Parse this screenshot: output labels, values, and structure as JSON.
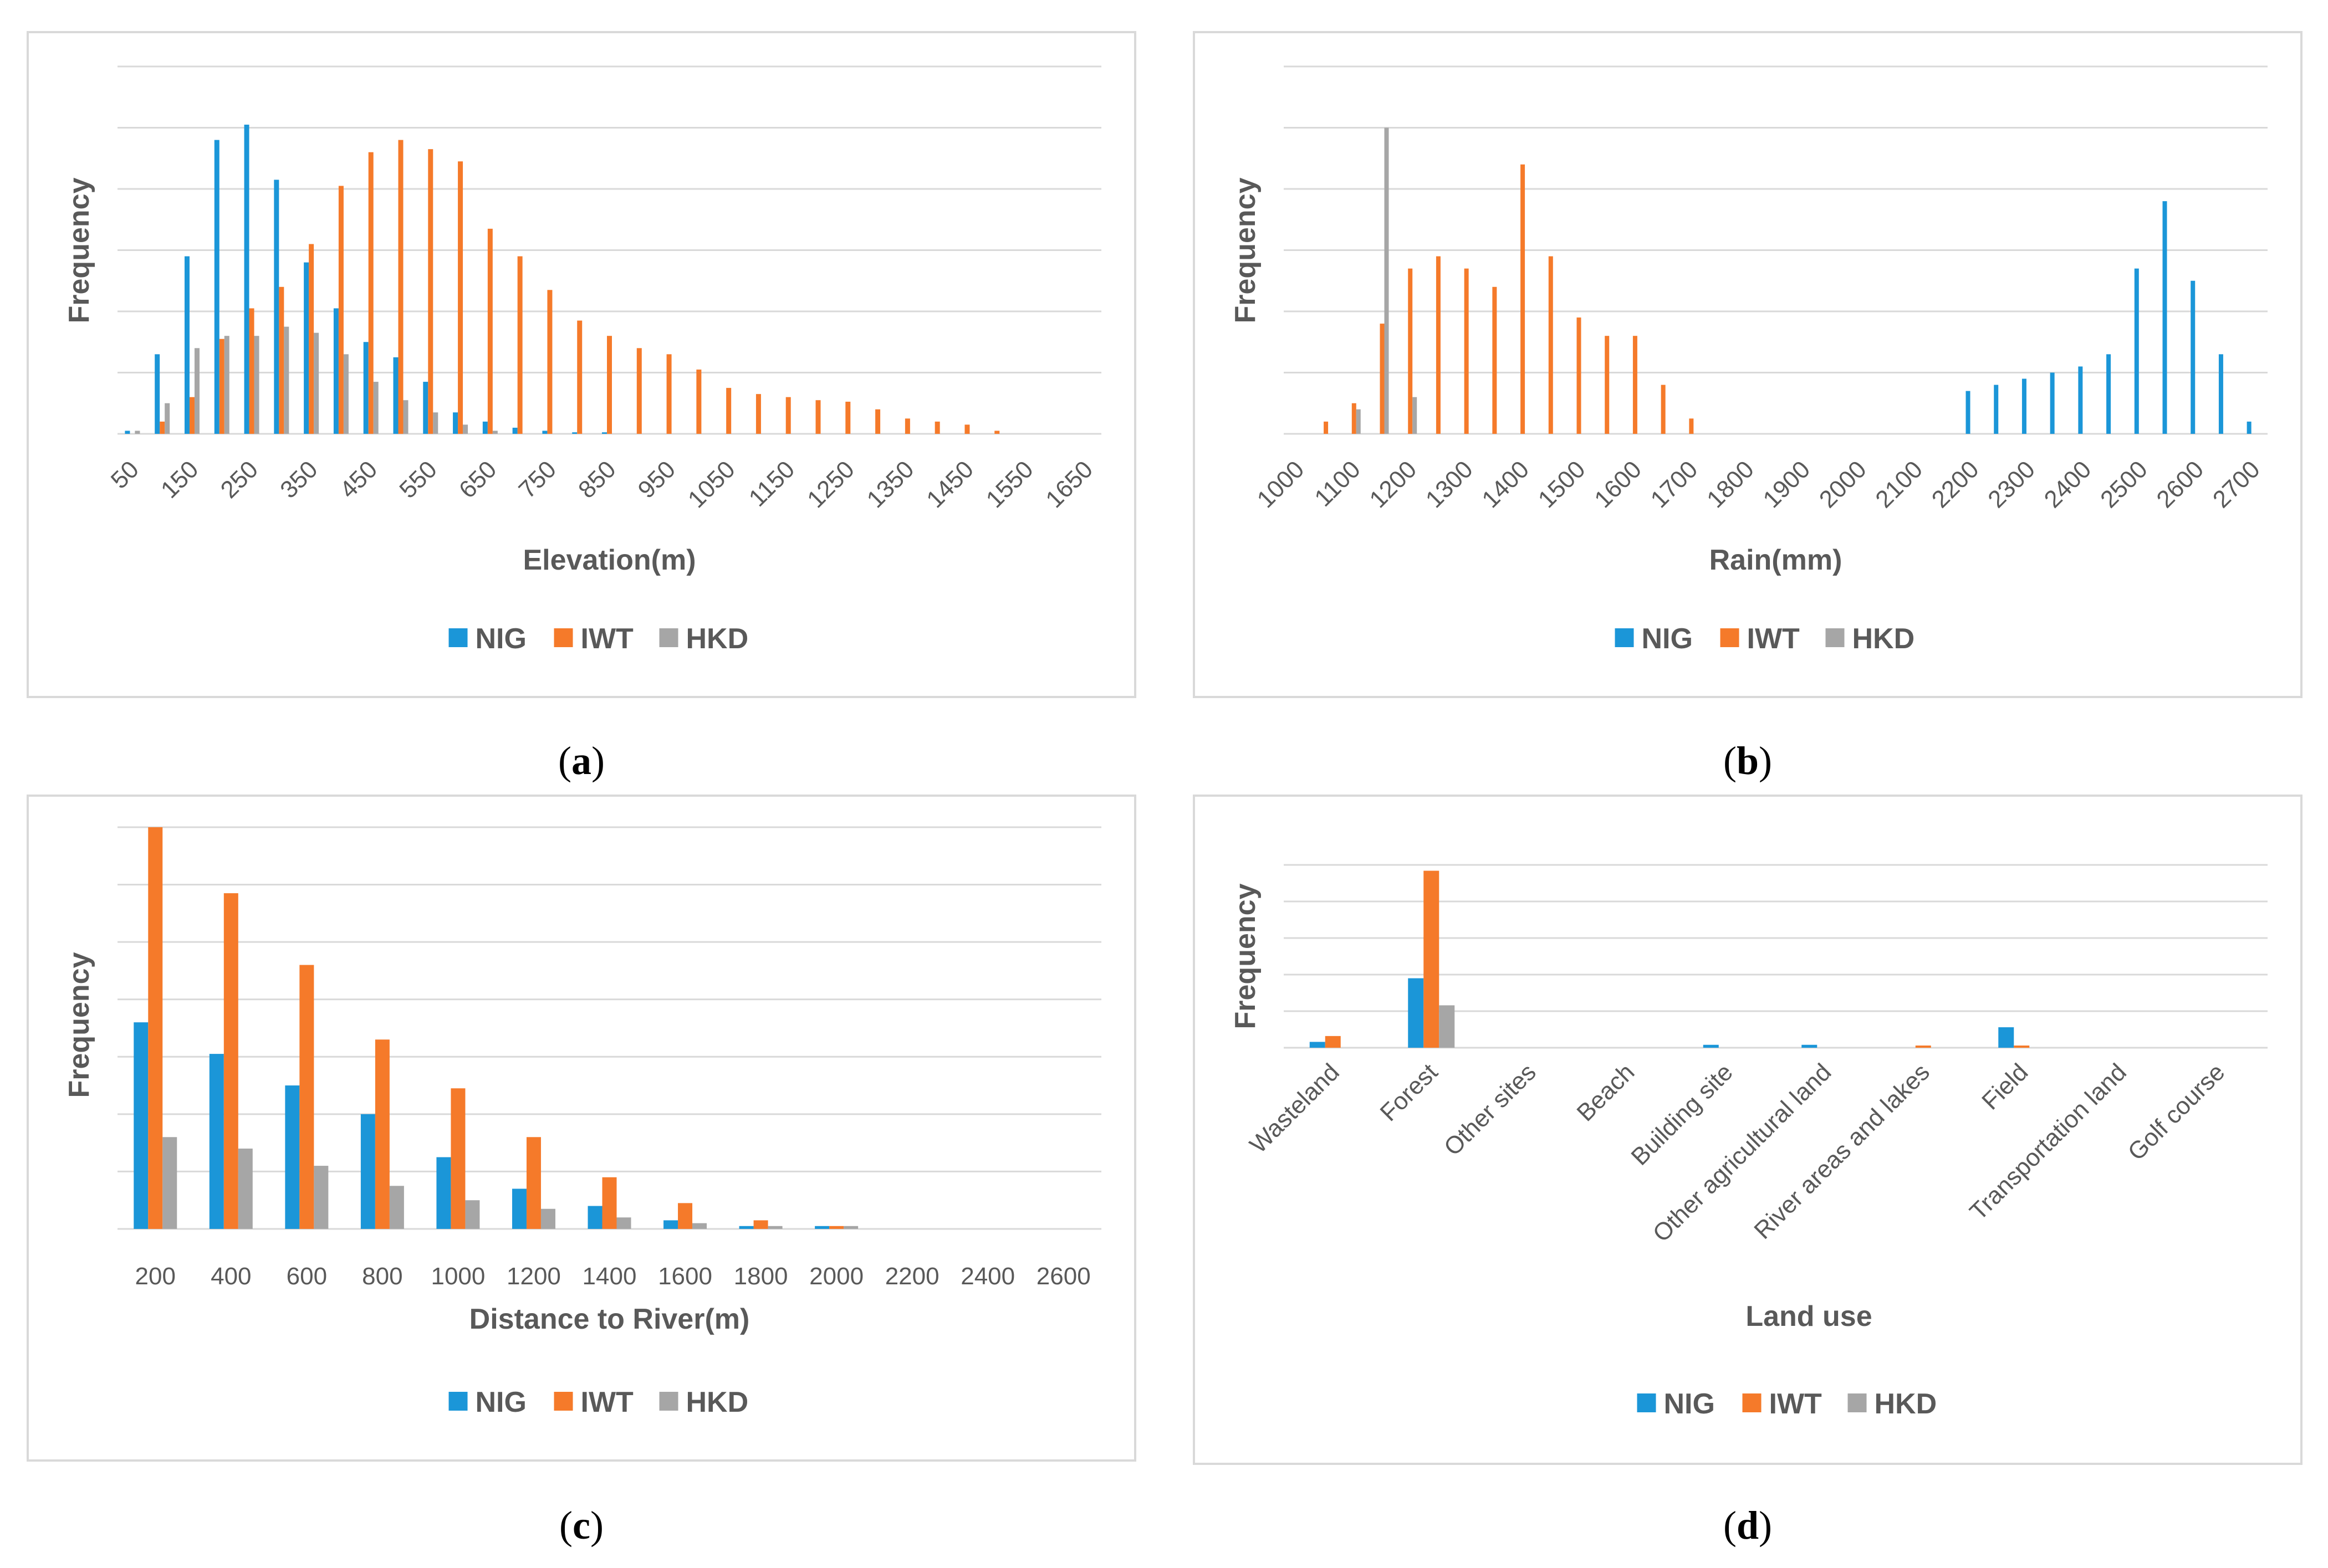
{
  "colors": {
    "NIG": "#1b96d8",
    "IWT": "#f57a2a",
    "HKD": "#a6a6a6",
    "grid": "#d9d9d9",
    "text": "#595959"
  },
  "captions": [
    {
      "open": "(",
      "letter": "a",
      "close": ")"
    },
    {
      "open": "(",
      "letter": "b",
      "close": ")"
    },
    {
      "open": "(",
      "letter": "c",
      "close": ")"
    },
    {
      "open": "(",
      "letter": "d",
      "close": ")"
    }
  ],
  "chart_data": [
    {
      "type": "bar",
      "xlabel": "Elevation(m)",
      "ylabel": "Frequency",
      "ylim": [
        0,
        120
      ],
      "gridlines": 6,
      "categories": [
        "50",
        "100",
        "150",
        "200",
        "250",
        "300",
        "350",
        "400",
        "450",
        "500",
        "550",
        "600",
        "650",
        "700",
        "750",
        "800",
        "850",
        "900",
        "950",
        "1000",
        "1050",
        "1100",
        "1150",
        "1200",
        "1250",
        "1300",
        "1350",
        "1400",
        "1450",
        "1500",
        "1550",
        "1600",
        "1650"
      ],
      "tick_labels": [
        "50",
        "150",
        "250",
        "350",
        "450",
        "550",
        "650",
        "750",
        "850",
        "950",
        "1050",
        "1150",
        "1250",
        "1350",
        "1450",
        "1550",
        "1650"
      ],
      "series": [
        {
          "name": "NIG",
          "values": [
            1,
            26,
            58,
            96,
            101,
            83,
            56,
            41,
            30,
            25,
            17,
            7,
            4,
            2,
            1,
            0.5,
            0.5,
            0,
            0,
            0,
            0,
            0,
            0,
            0,
            0,
            0,
            0,
            0,
            0,
            0,
            0,
            0,
            0
          ]
        },
        {
          "name": "IWT",
          "values": [
            0,
            4,
            12,
            31,
            41,
            48,
            62,
            81,
            92,
            96,
            93,
            89,
            67,
            58,
            47,
            37,
            32,
            28,
            26,
            21,
            15,
            13,
            12,
            11,
            10.5,
            8,
            5,
            4,
            3,
            1,
            0,
            0,
            0
          ]
        },
        {
          "name": "HKD",
          "values": [
            1,
            10,
            28,
            32,
            32,
            35,
            33,
            26,
            17,
            11,
            7,
            3,
            1,
            0,
            0,
            0,
            0,
            0,
            0,
            0,
            0,
            0,
            0,
            0,
            0,
            0,
            0,
            0,
            0,
            0,
            0,
            0,
            0
          ]
        }
      ],
      "legend": [
        "NIG",
        "IWT",
        "HKD"
      ]
    },
    {
      "type": "bar",
      "xlabel": "Rain(mm)",
      "ylabel": "Frequency",
      "ylim": [
        0,
        60
      ],
      "gridlines": 6,
      "categories": [
        "1000",
        "1050",
        "1100",
        "1150",
        "1200",
        "1250",
        "1300",
        "1350",
        "1400",
        "1450",
        "1500",
        "1550",
        "1600",
        "1650",
        "1700",
        "1750",
        "1800",
        "1850",
        "1900",
        "1950",
        "2000",
        "2050",
        "2100",
        "2150",
        "2200",
        "2250",
        "2300",
        "2350",
        "2400",
        "2450",
        "2500",
        "2550",
        "2600",
        "2650",
        "2700"
      ],
      "tick_labels": [
        "1000",
        "1100",
        "1200",
        "1300",
        "1400",
        "1500",
        "1600",
        "1700",
        "1800",
        "1900",
        "2000",
        "2100",
        "2200",
        "2300",
        "2400",
        "2500",
        "2600",
        "2700"
      ],
      "series": [
        {
          "name": "NIG",
          "values": [
            0,
            0,
            0,
            0,
            0,
            0,
            0,
            0,
            0,
            0,
            0,
            0,
            0,
            0,
            0,
            0,
            0,
            0,
            0,
            0,
            0,
            0,
            0,
            0,
            7,
            8,
            9,
            10,
            11,
            13,
            27,
            38,
            25,
            13,
            2
          ]
        },
        {
          "name": "IWT",
          "values": [
            0,
            2,
            5,
            18,
            27,
            29,
            27,
            24,
            44,
            29,
            19,
            16,
            16,
            8,
            2.5,
            0,
            0,
            0,
            0,
            0,
            0,
            0,
            0,
            0,
            0,
            0,
            0,
            0,
            0,
            0,
            0,
            0,
            0,
            0,
            0
          ]
        },
        {
          "name": "HKD",
          "values": [
            0,
            0,
            4,
            50,
            6,
            0,
            0,
            0,
            0,
            0,
            0,
            0,
            0,
            0,
            0,
            0,
            0,
            0,
            0,
            0,
            0,
            0,
            0,
            0,
            0,
            0,
            0,
            0,
            0,
            0,
            0,
            0,
            0,
            0,
            0
          ]
        }
      ],
      "legend": [
        "NIG",
        "IWT",
        "HKD"
      ]
    },
    {
      "type": "bar",
      "xlabel": "Distance to River(m)",
      "ylabel": "Frequency",
      "ylim": [
        0,
        140
      ],
      "gridlines": 7,
      "categories": [
        "200",
        "400",
        "600",
        "800",
        "1000",
        "1200",
        "1400",
        "1600",
        "1800",
        "2000",
        "2200",
        "2400",
        "2600"
      ],
      "tick_labels": [
        "200",
        "400",
        "600",
        "800",
        "1000",
        "1200",
        "1400",
        "1600",
        "1800",
        "2000",
        "2200",
        "2400",
        "2600"
      ],
      "series": [
        {
          "name": "NIG",
          "values": [
            72,
            61,
            50,
            40,
            25,
            14,
            8,
            3,
            1,
            1,
            0,
            0,
            0
          ]
        },
        {
          "name": "IWT",
          "values": [
            140,
            117,
            92,
            66,
            49,
            32,
            18,
            9,
            3,
            1,
            0,
            0,
            0
          ]
        },
        {
          "name": "HKD",
          "values": [
            32,
            28,
            22,
            15,
            10,
            7,
            4,
            2,
            1,
            1,
            0,
            0,
            0
          ]
        }
      ],
      "legend": [
        "NIG",
        "IWT",
        "HKD"
      ]
    },
    {
      "type": "bar",
      "xlabel": "Land use",
      "ylabel": "Frequency",
      "ylim": [
        0,
        250
      ],
      "gridlines": 5,
      "categories": [
        "Wasteland",
        "Forest",
        "Other sites",
        "Beach",
        "Building site",
        "Other agricultural land",
        "River areas and lakes",
        "Field",
        "Transportation land",
        "Golf course"
      ],
      "tick_labels": [
        "Wasteland",
        "Forest",
        "Other sites",
        "Beach",
        "Building site",
        "Other agricultural land",
        "River areas and lakes",
        "Field",
        "Transportation land",
        "Golf course"
      ],
      "series": [
        {
          "name": "NIG",
          "values": [
            8,
            95,
            0,
            0,
            4,
            4,
            0,
            28,
            0,
            0
          ]
        },
        {
          "name": "IWT",
          "values": [
            16,
            242,
            0,
            0,
            0,
            0,
            3,
            3,
            0,
            0
          ]
        },
        {
          "name": "HKD",
          "values": [
            0,
            58,
            0,
            0,
            0,
            0,
            0,
            0,
            0,
            0
          ]
        }
      ],
      "legend": [
        "NIG",
        "IWT",
        "HKD"
      ]
    }
  ]
}
